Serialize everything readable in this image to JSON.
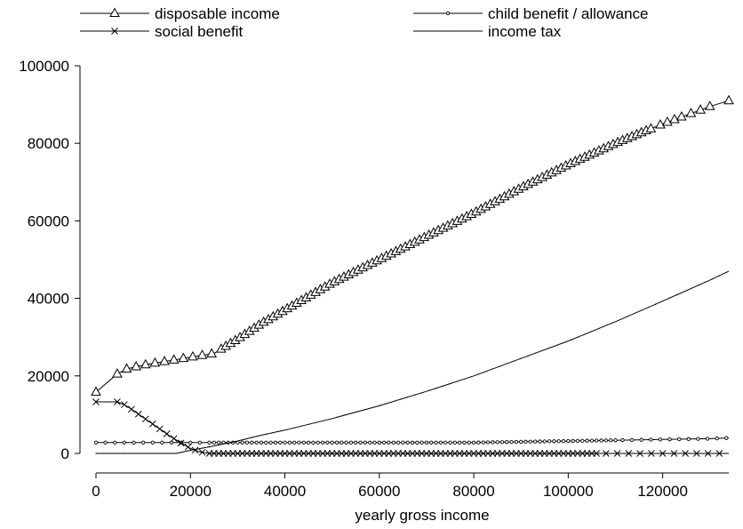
{
  "chart_data": {
    "type": "line",
    "title": "",
    "xlabel": "yearly gross income",
    "ylabel": "",
    "xlim": [
      0,
      134000
    ],
    "ylim": [
      0,
      100000
    ],
    "xticks": [
      0,
      20000,
      40000,
      60000,
      80000,
      100000,
      120000
    ],
    "yticks": [
      0,
      20000,
      40000,
      60000,
      80000,
      100000
    ],
    "xtick_labels": [
      "0",
      "20000",
      "40000",
      "60000",
      "80000",
      "100000",
      "120000"
    ],
    "ytick_labels": [
      "0",
      "20000",
      "40000",
      "60000",
      "80000",
      "100000"
    ],
    "legend_position": "top",
    "grid": false,
    "series": [
      {
        "name": "disposable income",
        "marker": "triangle",
        "x": [
          0,
          4500,
          6500,
          9000,
          11000,
          13000,
          15000,
          17000,
          19000,
          21000,
          23000,
          25000,
          30000,
          35000,
          40000,
          50000,
          60000,
          70000,
          80000,
          90000,
          100000,
          110000,
          120000,
          130000,
          134000
        ],
        "y": [
          15800,
          20500,
          21800,
          22500,
          23000,
          23400,
          23800,
          24200,
          24600,
          25000,
          25400,
          25800,
          29500,
          33500,
          37000,
          44000,
          50000,
          56000,
          62000,
          68500,
          74500,
          80000,
          85000,
          89500,
          91000
        ]
      },
      {
        "name": "child benefit / allowance",
        "marker": "circle",
        "x": [
          0,
          20000,
          40000,
          60000,
          80000,
          90000,
          100000,
          110000,
          120000,
          130000,
          134000
        ],
        "y": [
          2800,
          2800,
          2800,
          2800,
          2800,
          3000,
          3200,
          3400,
          3600,
          3800,
          4000
        ]
      },
      {
        "name": "social benefit",
        "marker": "x",
        "x": [
          0,
          4500,
          6000,
          8000,
          10000,
          12000,
          14000,
          16000,
          18000,
          20000,
          22000,
          24000,
          30000,
          60000,
          100000,
          134000
        ],
        "y": [
          13300,
          13300,
          12600,
          11000,
          9300,
          7600,
          5900,
          4200,
          2700,
          1300,
          400,
          0,
          0,
          0,
          0,
          0
        ]
      },
      {
        "name": "income tax",
        "marker": "dot",
        "x": [
          0,
          17000,
          20000,
          24000,
          28000,
          30000,
          35000,
          40000,
          50000,
          60000,
          70000,
          80000,
          90000,
          100000,
          110000,
          120000,
          130000,
          134000
        ],
        "y": [
          0,
          0,
          800,
          1700,
          2700,
          3200,
          4700,
          6000,
          9000,
          12300,
          16000,
          20000,
          24500,
          29000,
          34000,
          39300,
          44700,
          47000
        ]
      }
    ]
  }
}
